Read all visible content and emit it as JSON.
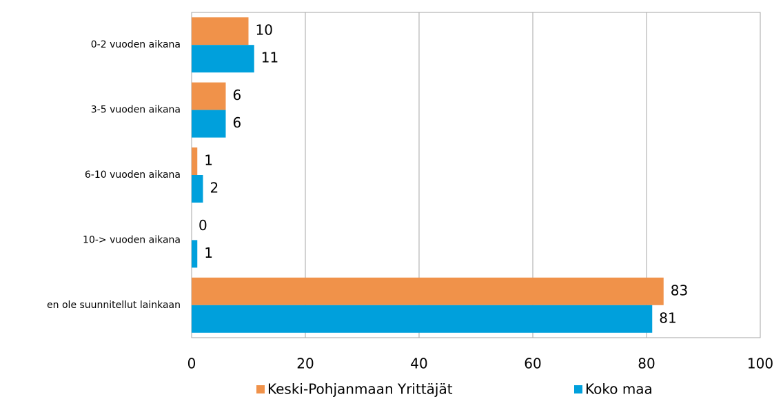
{
  "chart_data": {
    "type": "hbar",
    "categories": [
      "0-2 vuoden aikana",
      "3-5 vuoden aikana",
      "6-10 vuoden aikana",
      "10-> vuoden aikana",
      "en ole suunnitellut  lainkaan"
    ],
    "series": [
      {
        "name": "Keski-Pohjanmaan Yrittäjät",
        "color": "#f0924a",
        "values": [
          10,
          6,
          1,
          0,
          83
        ]
      },
      {
        "name": "Koko maa",
        "color": "#00a0dc",
        "values": [
          11,
          6,
          2,
          1,
          81
        ]
      }
    ],
    "xlim": [
      0,
      100
    ],
    "xticks": [
      0,
      20,
      40,
      60,
      80,
      100
    ],
    "grid": true,
    "legend": "bottom"
  }
}
